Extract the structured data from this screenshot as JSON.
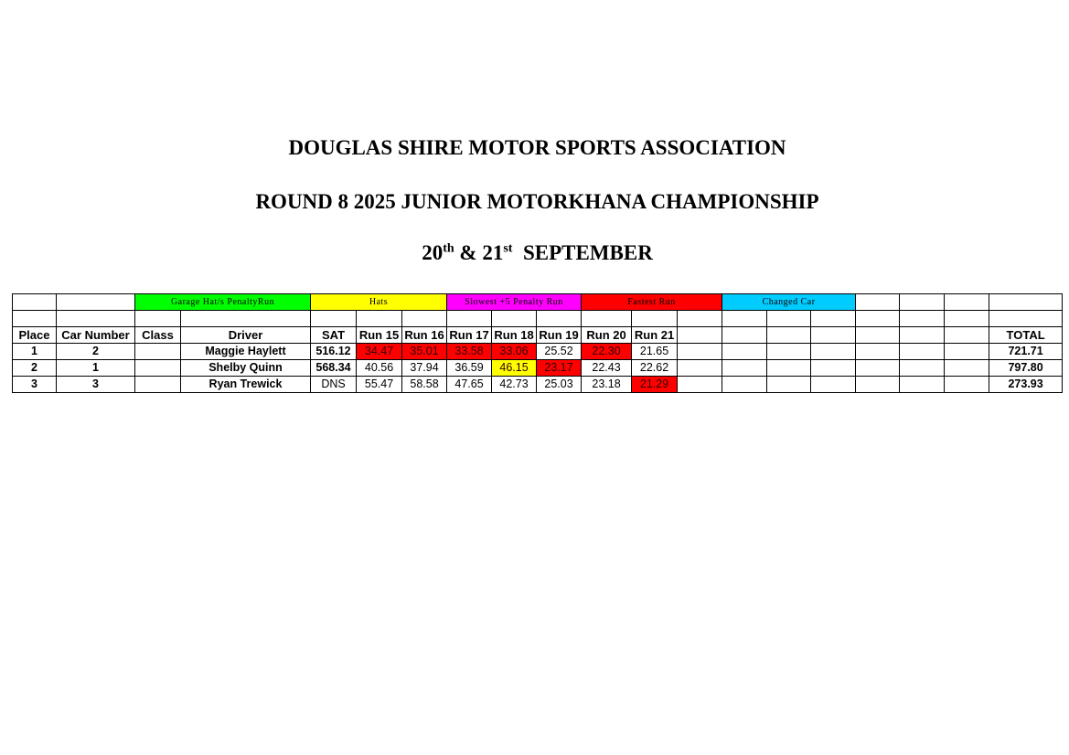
{
  "header": {
    "title": "DOUGLAS SHIRE MOTOR SPORTS ASSOCIATION",
    "subtitle": "ROUND 8 2025 JUNIOR MOTORKHANA CHAMPIONSHIP",
    "date": {
      "day1": "20",
      "sup1": "th",
      "amp": " & ",
      "day2": "21",
      "sup2": "st",
      "month": "  SEPTEMBER"
    }
  },
  "legend": [
    {
      "label": "Garage Hat/s PenaltyRun",
      "color": "#00ff00"
    },
    {
      "label": "Hats",
      "color": "#ffff00"
    },
    {
      "label": "Slowest +5 Penalty Run",
      "color": "#ff00ff"
    },
    {
      "label": "Fastest Run",
      "color": "#ff0000"
    },
    {
      "label": "Changed Car",
      "color": "#00ccff"
    }
  ],
  "columns": [
    "Place",
    "Car Number",
    "Class",
    "Driver",
    "SAT",
    "Run 15",
    "Run 16",
    "Run 17",
    "Run 18",
    "Run 19",
    "Run 20",
    "Run 21",
    "",
    "",
    "",
    "",
    "",
    "",
    "",
    "TOTAL"
  ],
  "rows": [
    {
      "place": "1",
      "car": "2",
      "class": "",
      "driver": "Maggie Haylett",
      "sat": "516.12",
      "runs": [
        {
          "v": "34.47",
          "c": "#ff0000"
        },
        {
          "v": "35.01",
          "c": "#ff0000"
        },
        {
          "v": "33.58",
          "c": "#ff0000"
        },
        {
          "v": "33.06",
          "c": "#ff0000"
        },
        {
          "v": "25.52"
        },
        {
          "v": "22.30",
          "c": "#ff0000"
        },
        {
          "v": "21.65"
        }
      ],
      "total": "721.71"
    },
    {
      "place": "2",
      "car": "1",
      "class": "",
      "driver": "Shelby Quinn",
      "sat": "568.34",
      "runs": [
        {
          "v": "40.56"
        },
        {
          "v": "37.94"
        },
        {
          "v": "36.59"
        },
        {
          "v": "46.15",
          "c": "#ffff00"
        },
        {
          "v": "23.17",
          "c": "#ff0000"
        },
        {
          "v": "22.43"
        },
        {
          "v": "22.62"
        }
      ],
      "total": "797.80"
    },
    {
      "place": "3",
      "car": "3",
      "class": "",
      "driver": "Ryan Trewick",
      "sat": "DNS",
      "runs": [
        {
          "v": "55.47"
        },
        {
          "v": "58.58"
        },
        {
          "v": "47.65"
        },
        {
          "v": "42.73"
        },
        {
          "v": "25.03"
        },
        {
          "v": "23.18"
        },
        {
          "v": "21.29",
          "c": "#ff0000"
        }
      ],
      "total": "273.93"
    }
  ]
}
